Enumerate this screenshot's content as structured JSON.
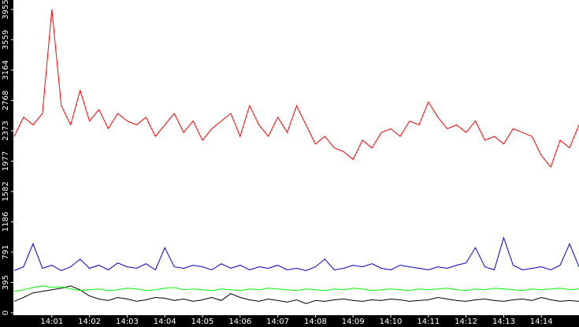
{
  "chart_data": {
    "type": "line",
    "categories": [
      null,
      null,
      null,
      null,
      "14:01",
      null,
      null,
      null,
      "14:02",
      null,
      null,
      null,
      "14:03",
      null,
      null,
      null,
      "14:04",
      null,
      null,
      null,
      "14:05",
      null,
      null,
      null,
      "14:06",
      null,
      null,
      null,
      "14:07",
      null,
      null,
      null,
      "14:08",
      null,
      null,
      null,
      "14:09",
      null,
      null,
      null,
      "14:10",
      null,
      null,
      null,
      "14:11",
      null,
      null,
      null,
      "14:12",
      null,
      null,
      null,
      "14:13",
      null,
      null,
      null,
      "14:14",
      null,
      null,
      null,
      null
    ],
    "series": [
      {
        "color": "#ff0000",
        "values": [
          2300,
          2550,
          2450,
          2600,
          3955,
          2700,
          2450,
          2900,
          2500,
          2650,
          2400,
          2600,
          2500,
          2450,
          2550,
          2300,
          2450,
          2600,
          2350,
          2500,
          2250,
          2400,
          2500,
          2600,
          2300,
          2700,
          2450,
          2300,
          2550,
          2350,
          2700,
          2450,
          2200,
          2300,
          2150,
          2100,
          2000,
          2250,
          2150,
          2350,
          2400,
          2300,
          2500,
          2450,
          2750,
          2550,
          2400,
          2450,
          2350,
          2500,
          2250,
          2300,
          2200,
          2400,
          2350,
          2300,
          2050,
          1900,
          2250,
          2150,
          2450
        ]
      },
      {
        "color": "#0000cc",
        "values": [
          550,
          600,
          900,
          580,
          620,
          550,
          600,
          700,
          580,
          620,
          560,
          650,
          600,
          580,
          640,
          560,
          850,
          600,
          580,
          620,
          600,
          560,
          640,
          580,
          620,
          560,
          600,
          580,
          620,
          560,
          580,
          550,
          600,
          700,
          560,
          580,
          620,
          600,
          640,
          580,
          560,
          620,
          600,
          580,
          560,
          600,
          580,
          620,
          650,
          850,
          600,
          560,
          980,
          620,
          560,
          580,
          600,
          560,
          620,
          900,
          600
        ]
      },
      {
        "color": "#00ff00",
        "values": [
          280,
          300,
          330,
          350,
          330,
          340,
          310,
          290,
          300,
          310,
          290,
          300,
          320,
          310,
          290,
          300,
          320,
          330,
          300,
          310,
          300,
          290,
          310,
          300,
          290,
          310,
          300,
          320,
          310,
          300,
          290,
          310,
          300,
          290,
          310,
          300,
          320,
          310,
          290,
          300,
          310,
          300,
          290,
          310,
          300,
          310,
          320,
          300,
          290,
          310,
          300,
          320,
          310,
          300,
          290,
          310,
          300,
          310,
          320,
          300,
          310
        ]
      },
      {
        "color": "#000000",
        "values": [
          150,
          200,
          260,
          280,
          300,
          320,
          350,
          300,
          220,
          180,
          160,
          200,
          180,
          150,
          170,
          200,
          190,
          160,
          180,
          150,
          170,
          200,
          160,
          250,
          200,
          170,
          150,
          180,
          160,
          140,
          170,
          120,
          160,
          150,
          170,
          180,
          160,
          150,
          170,
          160,
          180,
          170,
          150,
          160,
          170,
          200,
          180,
          160,
          150,
          170,
          180,
          160,
          150,
          170,
          180,
          160,
          200,
          170,
          150,
          160,
          150
        ]
      }
    ],
    "ylim": [
      0,
      3955
    ],
    "yticks": [
      0,
      395,
      791,
      1186,
      1582,
      1977,
      2373,
      2768,
      3164,
      3559,
      3955
    ]
  }
}
